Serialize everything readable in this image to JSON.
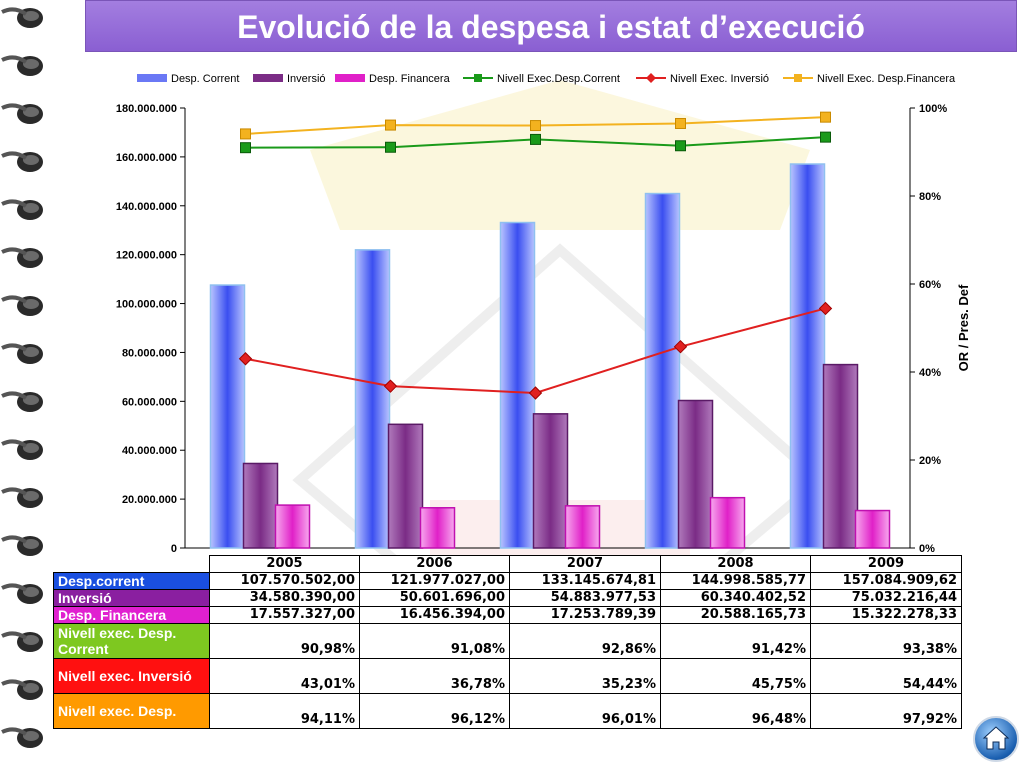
{
  "title": "Evolució de la despesa i estat d’execució",
  "colors": {
    "corrent": "#3a4ef0",
    "inversio": "#7b2c86",
    "financera": "#e020c8",
    "line_corrent": "#1a9a1a",
    "line_inversio": "#e02020",
    "line_financera": "#f3b21f",
    "title_bg": "#9a72dc"
  },
  "chart_data": {
    "type": "bar",
    "categories": [
      "2005",
      "2006",
      "2007",
      "2008",
      "2009"
    ],
    "series": [
      {
        "name": "Desp. Corrent",
        "kind": "bar",
        "axis": "left",
        "values": [
          107570502.0,
          121977027.0,
          133145674.81,
          144998585.77,
          157084909.62
        ]
      },
      {
        "name": "Inversió",
        "kind": "bar",
        "axis": "left",
        "values": [
          34580390.0,
          50601696.0,
          54883977.53,
          60340402.52,
          75032216.44
        ]
      },
      {
        "name": "Desp. Financera",
        "kind": "bar",
        "axis": "left",
        "values": [
          17557327.0,
          16456394.0,
          17253789.39,
          20588165.73,
          15322278.33
        ]
      },
      {
        "name": "Nivell Exec.Desp.Corrent",
        "kind": "line",
        "axis": "right",
        "values": [
          90.98,
          91.08,
          92.86,
          91.42,
          93.38
        ]
      },
      {
        "name": "Nivell Exec. Inversió",
        "kind": "line",
        "axis": "right",
        "values": [
          43.01,
          36.78,
          35.23,
          45.75,
          54.44
        ]
      },
      {
        "name": "Nivell Exec. Desp.Financera",
        "kind": "line",
        "axis": "right",
        "values": [
          94.11,
          96.12,
          96.01,
          96.48,
          97.92
        ]
      }
    ],
    "y_left": {
      "ylim": [
        0,
        180000000
      ],
      "ticks": [
        "0",
        "20.000.000",
        "40.000.000",
        "60.000.000",
        "80.000.000",
        "100.000.000",
        "120.000.000",
        "140.000.000",
        "160.000.000",
        "180.000.000"
      ]
    },
    "y_right": {
      "label": "OR / Pres. Def",
      "ylim": [
        0,
        100
      ],
      "ticks": [
        "0%",
        "20%",
        "40%",
        "60%",
        "80%",
        "100%"
      ]
    },
    "legend": {
      "position": "top"
    }
  },
  "table": {
    "header": [
      "2005",
      "2006",
      "2007",
      "2008",
      "2009"
    ],
    "rows": [
      {
        "label": "Desp.corrent",
        "bg": "#1a4fe0",
        "fg": "#ffffff",
        "values": [
          "107.570.502,00",
          "121.977.027,00",
          "133.145.674,81",
          "144.998.585,77",
          "157.084.909,62"
        ]
      },
      {
        "label": "Inversió",
        "bg": "#8a1fa0",
        "fg": "#ffffff",
        "values": [
          "34.580.390,00",
          "50.601.696,00",
          "54.883.977,53",
          "60.340.402,52",
          "75.032.216,44"
        ]
      },
      {
        "label": "Desp. Financera",
        "bg": "#e020d0",
        "fg": "#ffffff",
        "values": [
          "17.557.327,00",
          "16.456.394,00",
          "17.253.789,39",
          "20.588.165,73",
          "15.322.278,33"
        ]
      },
      {
        "label": "Nivell exec. Desp. Corrent",
        "bg": "#7ec820",
        "fg": "#ffffff",
        "values": [
          "90,98%",
          "91,08%",
          "92,86%",
          "91,42%",
          "93,38%"
        ]
      },
      {
        "label": "Nivell exec. Inversió",
        "bg": "#ff1010",
        "fg": "#ffffff",
        "values": [
          "43,01%",
          "36,78%",
          "35,23%",
          "45,75%",
          "54,44%"
        ]
      },
      {
        "label": "Nivell exec. Desp.",
        "bg": "#ff9a00",
        "fg": "#ffffff",
        "values": [
          "94,11%",
          "96,12%",
          "96,01%",
          "96,48%",
          "97,92%"
        ]
      }
    ]
  },
  "icons": {
    "home": "home-icon",
    "binding": "spiral-binding"
  }
}
